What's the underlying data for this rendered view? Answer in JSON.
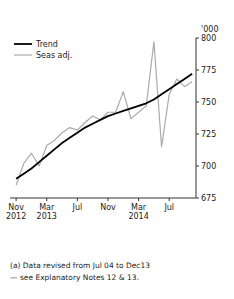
{
  "chart_data": {
    "type": "line",
    "ylabel": "'000",
    "categories": [
      "Nov\n2012",
      null,
      null,
      null,
      "Mar\n2013",
      null,
      null,
      null,
      "Jul",
      null,
      null,
      null,
      "Nov",
      null,
      null,
      null,
      "Mar\n2014",
      null,
      null,
      null,
      "Jul",
      null,
      null,
      null
    ],
    "series": [
      {
        "name": "Trend",
        "color": "#000000",
        "values": [
          690,
          694,
          698,
          703,
          708,
          713,
          718,
          722,
          726,
          730,
          733,
          736,
          739,
          741,
          743,
          745,
          747,
          749,
          752,
          756,
          760,
          764,
          768,
          772
        ]
      },
      {
        "name": "Seas adj.",
        "color": "#aaaaaa",
        "values": [
          685,
          702,
          710,
          700,
          716,
          720,
          726,
          730,
          728,
          734,
          739,
          736,
          742,
          742,
          758,
          737,
          742,
          747,
          797,
          715,
          756,
          768,
          762,
          766
        ]
      }
    ],
    "ylim": [
      675,
      800
    ],
    "yticks": [
      675,
      700,
      725,
      750,
      775,
      800
    ],
    "grid": false,
    "legend": "upper left",
    "annotations": [
      "(a) Data revised from Jul 04 to Dec13",
      "— see Explanatory Notes 12 & 13."
    ]
  }
}
